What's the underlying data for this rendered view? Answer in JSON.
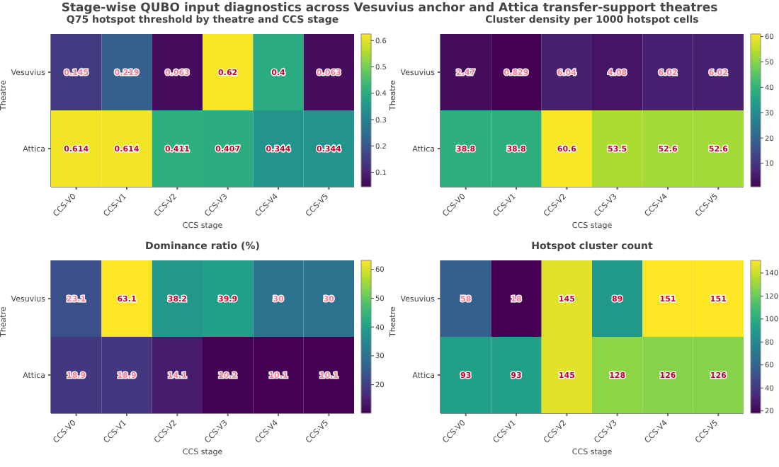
{
  "chart_data": [
    {
      "type": "heatmap",
      "title": "Q75 hotspot threshold by theatre and CCS stage",
      "xlabel": "CCS stage",
      "ylabel": "Theatre",
      "annotations": [
        "Stage-wise QUBO input diagnostics across Vesuvius anchor and Attica transfer-support theatres"
      ],
      "categories": [
        "CCS-V0",
        "CCS-V1",
        "CCS-V2",
        "CCS-V3",
        "CCS-V4",
        "CCS-V5"
      ],
      "y_categories": [
        "Vesuvius",
        "Attica"
      ],
      "cells": [
        [
          0.145,
          0.219,
          0.063,
          0.62,
          0.4,
          0.063
        ],
        [
          0.614,
          0.614,
          0.411,
          0.407,
          0.344,
          0.344
        ]
      ],
      "clim": [
        0.045,
        0.625
      ],
      "cticks": [
        0.1,
        0.2,
        0.3,
        0.4,
        0.5,
        0.6
      ],
      "data_labels": true
    },
    {
      "type": "heatmap",
      "title": "Cluster density per 1000 hotspot cells",
      "xlabel": "CCS stage",
      "ylabel": "Theatre",
      "categories": [
        "CCS-V0",
        "CCS-V1",
        "CCS-V2",
        "CCS-V3",
        "CCS-V4",
        "CCS-V5"
      ],
      "y_categories": [
        "Vesuvius",
        "Attica"
      ],
      "cells": [
        [
          2.47,
          0.829,
          6.04,
          4.08,
          6.02,
          6.02
        ],
        [
          38.8,
          38.8,
          60.6,
          53.5,
          52.6,
          52.6
        ]
      ],
      "clim": [
        0.8,
        61
      ],
      "cticks": [
        10,
        20,
        30,
        40,
        50,
        60
      ],
      "data_labels": true
    },
    {
      "type": "heatmap",
      "title": "Dominance ratio (%)",
      "xlabel": "CCS stage",
      "ylabel": "Theatre",
      "categories": [
        "CCS-V0",
        "CCS-V1",
        "CCS-V2",
        "CCS-V3",
        "CCS-V4",
        "CCS-V5"
      ],
      "y_categories": [
        "Vesuvius",
        "Attica"
      ],
      "cells": [
        [
          23.1,
          63.1,
          38.2,
          39.9,
          30,
          30
        ],
        [
          18.9,
          18.9,
          14.1,
          10.2,
          10.1,
          10.1
        ]
      ],
      "clim": [
        10.1,
        63.1
      ],
      "cticks": [
        20,
        30,
        40,
        50,
        60
      ],
      "data_labels": true
    },
    {
      "type": "heatmap",
      "title": "Hotspot cluster count",
      "xlabel": "CCS stage",
      "ylabel": "Theatre",
      "categories": [
        "CCS-V0",
        "CCS-V1",
        "CCS-V2",
        "CCS-V3",
        "CCS-V4",
        "CCS-V5"
      ],
      "y_categories": [
        "Vesuvius",
        "Attica"
      ],
      "cells": [
        [
          58,
          18,
          145,
          89,
          151,
          151
        ],
        [
          93,
          93,
          145,
          128,
          126,
          126
        ]
      ],
      "clim": [
        18,
        151
      ],
      "cticks": [
        20,
        40,
        60,
        80,
        100,
        120,
        140
      ],
      "data_labels": true
    }
  ]
}
